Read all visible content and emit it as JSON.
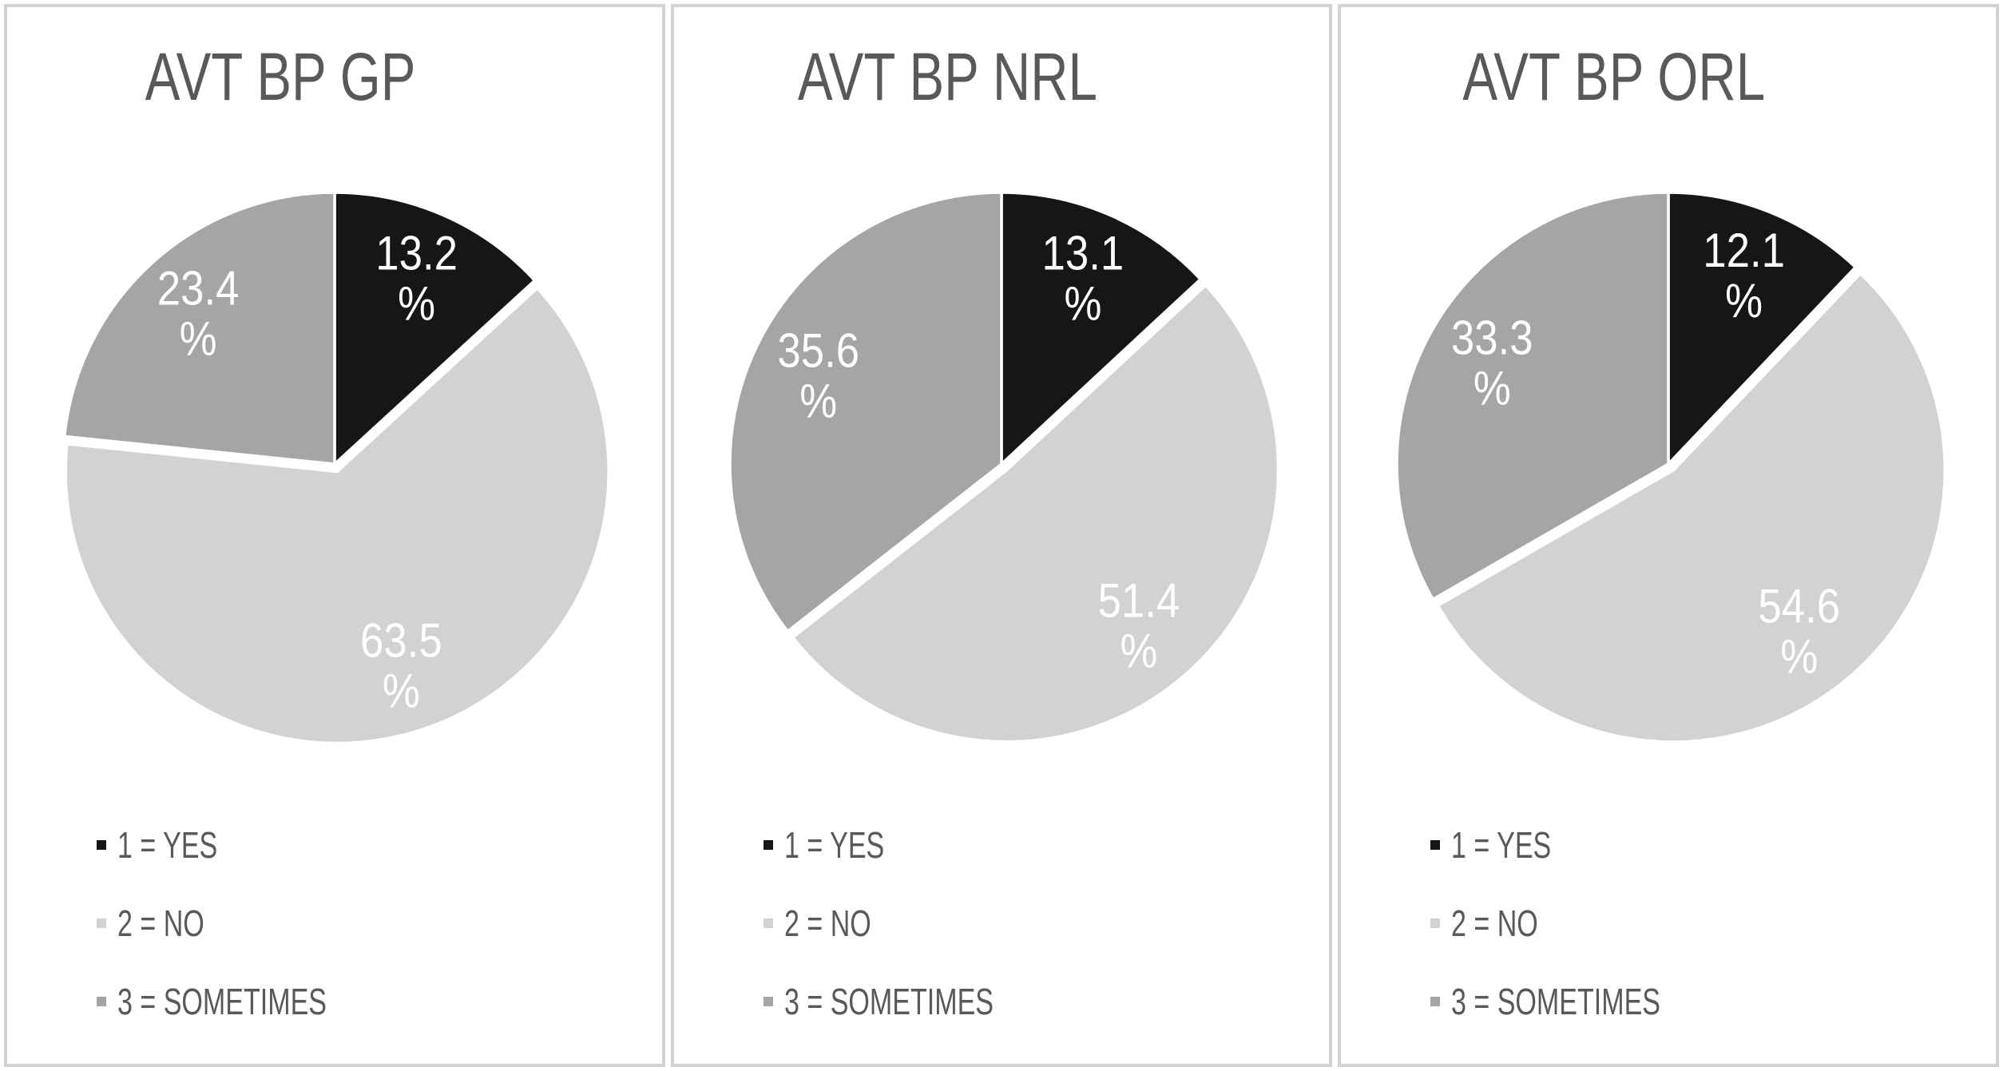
{
  "styles": {
    "background": "#ffffff",
    "panel_border_color": "#d2d2d2",
    "title_color": "#595959",
    "legend_text_color": "#595959",
    "slice_label_color": "#ffffff"
  },
  "legend": {
    "position": "bottom-left",
    "items": [
      {
        "label": "1 = YES",
        "color": "#161616"
      },
      {
        "label": "2 = NO",
        "color": "#d2d2d2"
      },
      {
        "label": "3 = SOMETIMES",
        "color": "#a5a5a5"
      }
    ]
  },
  "chart_data": [
    {
      "type": "pie",
      "title": "AVT BP GP",
      "categories": [
        "1 = YES",
        "2 = NO",
        "3 = SOMETIMES"
      ],
      "values": [
        13.2,
        63.5,
        23.4
      ],
      "unit": "%",
      "data_labels": [
        "13.2 %",
        "63.5 %",
        "23.4 %"
      ],
      "slice_colors": [
        "#161616",
        "#d2d2d2",
        "#a5a5a5"
      ],
      "exploded_slice": 1,
      "start_angle": "12 o'clock",
      "direction": "clockwise",
      "label_text_color": "#ffffff"
    },
    {
      "type": "pie",
      "title": "AVT BP NRL",
      "categories": [
        "1 = YES",
        "2 = NO",
        "3 = SOMETIMES"
      ],
      "values": [
        13.1,
        51.4,
        35.6
      ],
      "unit": "%",
      "data_labels": [
        "13.1 %",
        "51.4 %",
        "35.6 %"
      ],
      "slice_colors": [
        "#161616",
        "#d2d2d2",
        "#a5a5a5"
      ],
      "exploded_slice": 1,
      "start_angle": "12 o'clock",
      "direction": "clockwise",
      "label_text_color": "#ffffff"
    },
    {
      "type": "pie",
      "title": "AVT BP ORL",
      "categories": [
        "1 = YES",
        "2 = NO",
        "3 = SOMETIMES"
      ],
      "values": [
        12.1,
        54.6,
        33.3
      ],
      "unit": "%",
      "data_labels": [
        "12.1 %",
        "54.6 %",
        "33.3 %"
      ],
      "slice_colors": [
        "#161616",
        "#d2d2d2",
        "#a5a5a5"
      ],
      "exploded_slice": 1,
      "start_angle": "12 o'clock",
      "direction": "clockwise",
      "label_text_color": "#ffffff"
    }
  ]
}
